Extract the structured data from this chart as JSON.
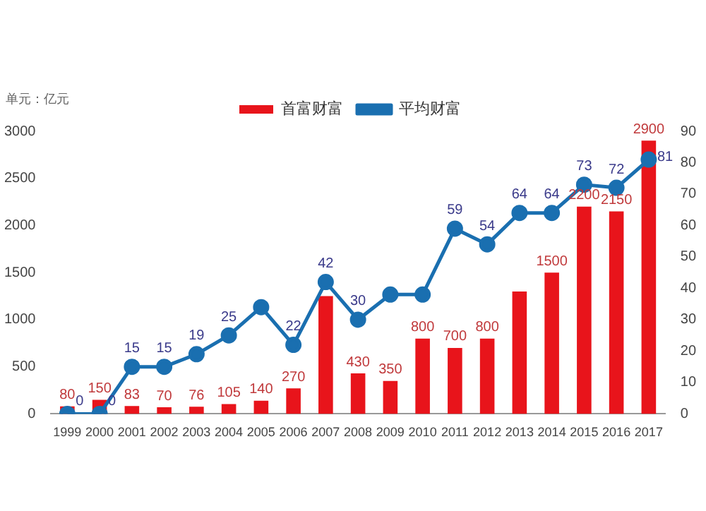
{
  "chart_data": {
    "type": "bar",
    "ylabel": "单元：亿元",
    "categories": [
      "1999",
      "2000",
      "2001",
      "2002",
      "2003",
      "2004",
      "2005",
      "2006",
      "2007",
      "2008",
      "2009",
      "2010",
      "2011",
      "2012",
      "2013",
      "2014",
      "2015",
      "2016",
      "2017"
    ],
    "series": [
      {
        "name": "首富财富",
        "color": "#e8141b",
        "values": [
          80,
          150,
          83,
          70,
          76,
          105,
          140,
          270,
          1250,
          430,
          350,
          800,
          700,
          800,
          1300,
          1500,
          2200,
          2150,
          2900
        ],
        "value_labels": [
          "80",
          "150",
          "83",
          "70",
          "76",
          "105",
          "140",
          "270",
          null,
          "430",
          "350",
          "800",
          "700",
          "800",
          null,
          "1500",
          "2200",
          "2150",
          "2900"
        ]
      },
      {
        "name": "平均财富",
        "type": "line",
        "axis": "y2",
        "color": "#1a6fb0",
        "marker": "circle",
        "values": [
          0,
          0,
          15,
          15,
          19,
          25,
          34,
          22,
          42,
          30,
          38,
          38,
          59,
          54,
          64,
          64,
          73,
          72,
          81
        ],
        "value_labels": [
          "0",
          "0",
          "15",
          "15",
          "19",
          "25",
          null,
          "22",
          "42",
          "30",
          null,
          null,
          "59",
          "54",
          "64",
          "64",
          "73",
          "72",
          "81"
        ]
      }
    ],
    "ylim": [
      0,
      3000
    ],
    "yticks": [
      0,
      500,
      1000,
      1500,
      2000,
      2500,
      3000
    ],
    "y2lim": [
      0,
      90
    ],
    "y2ticks": [
      0,
      10,
      20,
      30,
      40,
      50,
      60,
      70,
      80,
      90
    ],
    "legend": "top",
    "grid": false
  }
}
